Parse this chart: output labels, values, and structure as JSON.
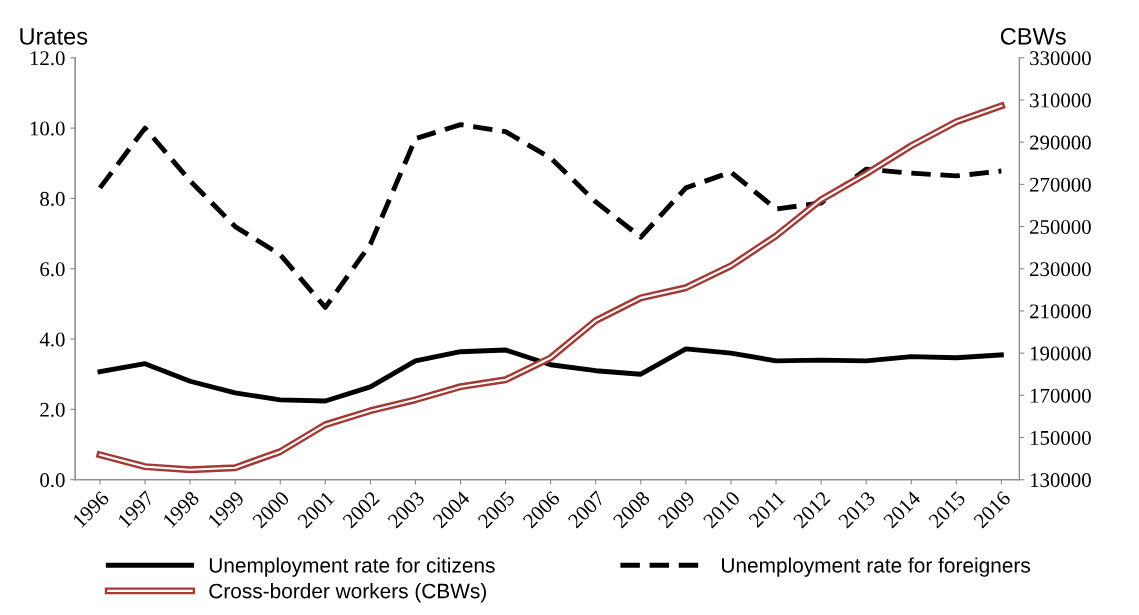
{
  "chart_data": {
    "type": "line",
    "categories": [
      "1996",
      "1997",
      "1998",
      "1999",
      "2000",
      "2001",
      "2002",
      "2003",
      "2004",
      "2005",
      "2006",
      "2007",
      "2008",
      "2009",
      "2010",
      "2011",
      "2012",
      "2013",
      "2014",
      "2015",
      "2016"
    ],
    "ylabel": "Urates",
    "y2label": "CBWs",
    "ylim": [
      0,
      12
    ],
    "yticks": [
      {
        "value": 0,
        "label": "0.0"
      },
      {
        "value": 2,
        "label": "2.0"
      },
      {
        "value": 4,
        "label": "4.0"
      },
      {
        "value": 6,
        "label": "6.0"
      },
      {
        "value": 8,
        "label": "8.0"
      },
      {
        "value": 10,
        "label": "10.0"
      },
      {
        "value": 12,
        "label": "12.0"
      }
    ],
    "y2lim": [
      130000,
      330000
    ],
    "y2ticks": [
      130000,
      150000,
      170000,
      190000,
      210000,
      230000,
      250000,
      270000,
      290000,
      310000,
      330000
    ],
    "series": [
      {
        "name": "Unemployment rate for citizens",
        "color": "#000000",
        "line_style": "solid",
        "values": [
          3.07,
          3.3,
          2.8,
          2.47,
          2.27,
          2.24,
          2.64,
          3.38,
          3.64,
          3.69,
          3.27,
          3.1,
          3.0,
          3.72,
          3.6,
          3.38,
          3.4,
          3.38,
          3.5,
          3.47,
          3.55
        ]
      },
      {
        "name": "Unemployment rate for foreigners",
        "color": "#000000",
        "line_style": "dashed",
        "values": [
          8.3,
          10.0,
          8.5,
          7.2,
          6.4,
          4.9,
          6.7,
          9.7,
          10.1,
          9.9,
          9.15,
          7.9,
          6.9,
          8.3,
          8.75,
          7.7,
          7.87,
          8.83,
          8.72,
          8.64,
          8.78
        ]
      },
      {
        "name": "Cross-border workers (CBWs)",
        "color": "#a33a36",
        "line_style": "solid",
        "axis": "y2",
        "values": [
          141800,
          136200,
          134700,
          135700,
          143300,
          156100,
          162700,
          167900,
          174100,
          177400,
          187800,
          205400,
          216200,
          221000,
          231400,
          245600,
          262700,
          275000,
          288300,
          299700,
          307200
        ]
      }
    ],
    "grid": false,
    "legend": "bottom",
    "marker": "none"
  }
}
